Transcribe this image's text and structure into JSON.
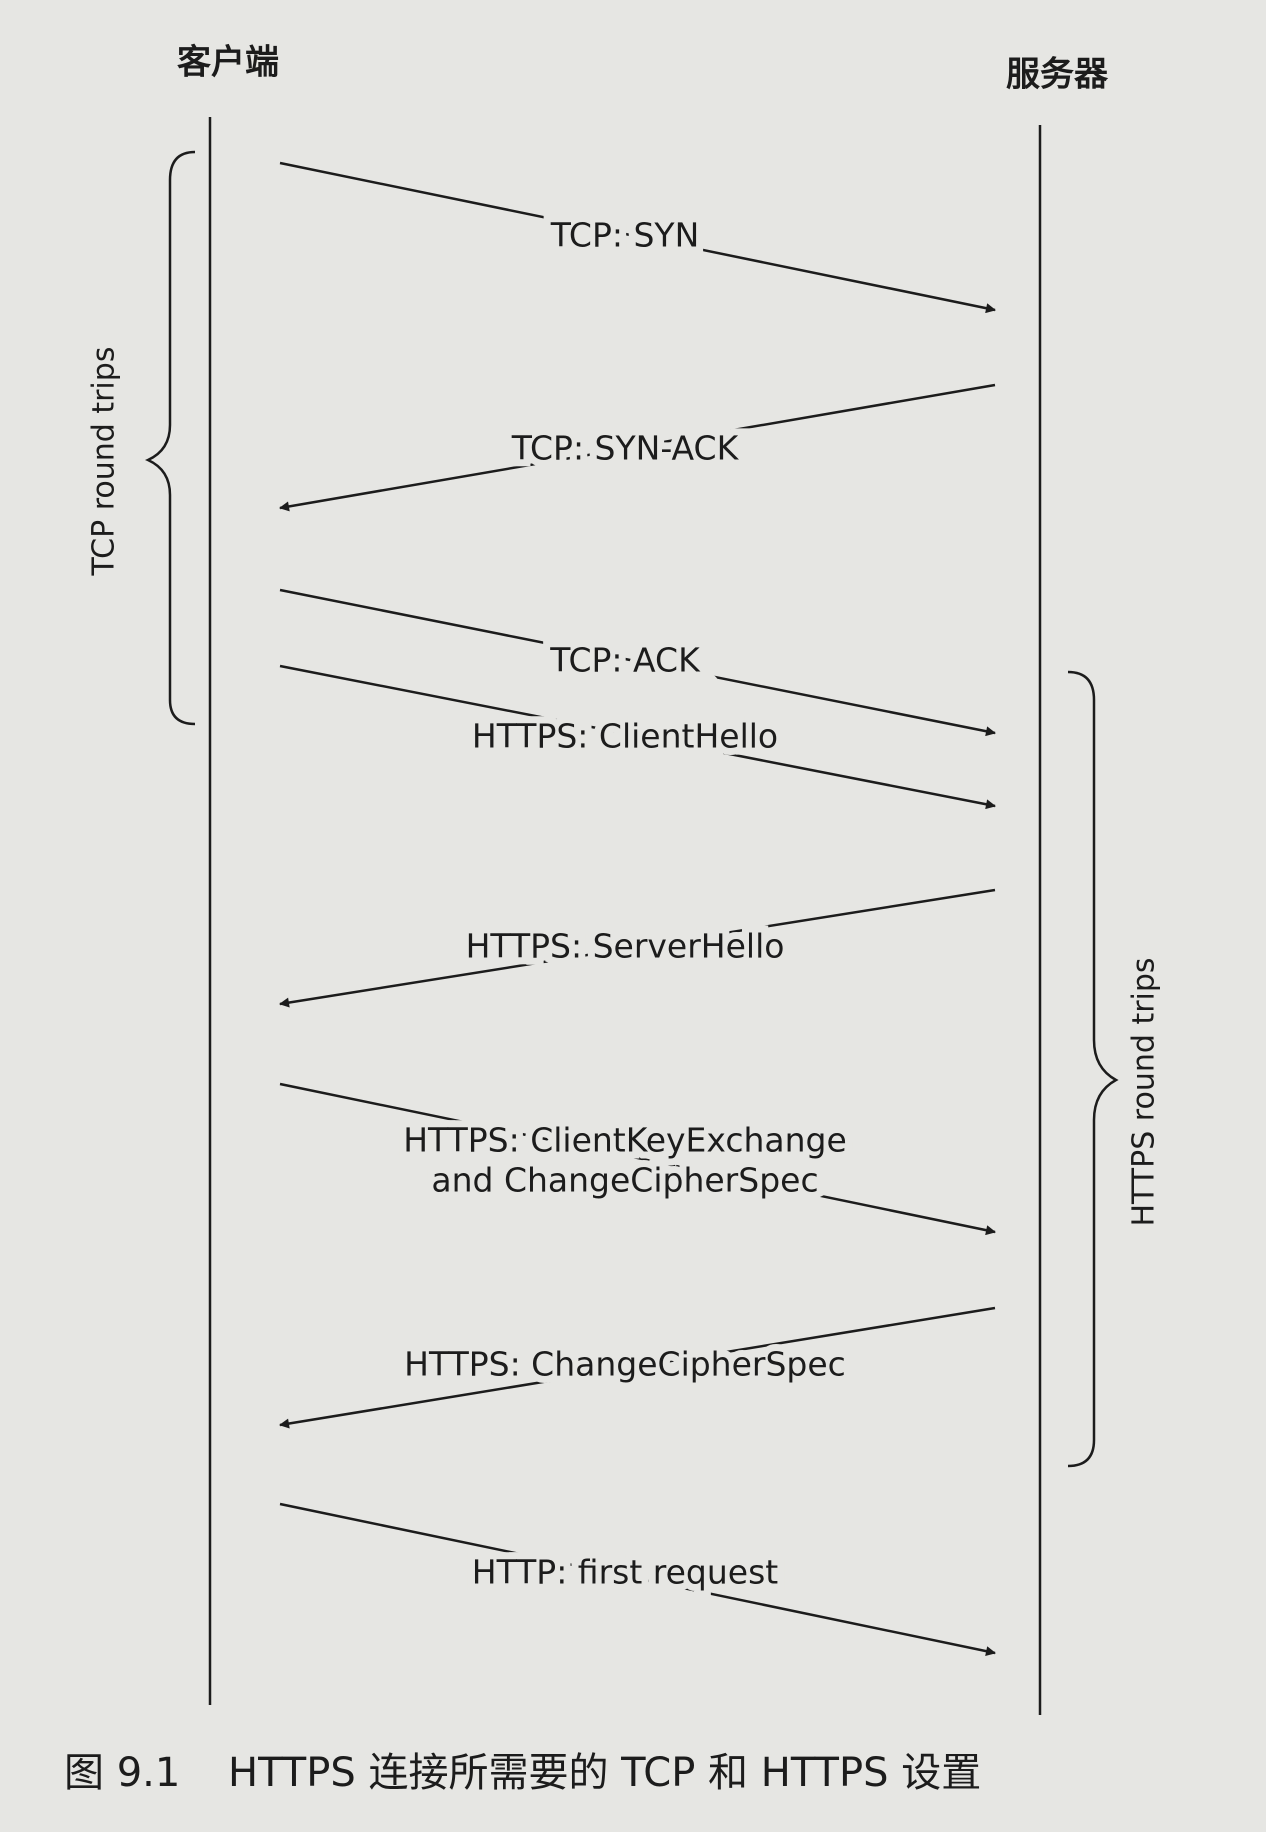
{
  "participants": {
    "client": "客户端",
    "server": "服务器"
  },
  "messages": [
    {
      "lines": [
        "TCP: SYN"
      ],
      "direction": "client-to-server"
    },
    {
      "lines": [
        "TCP: SYN-ACK"
      ],
      "direction": "server-to-client"
    },
    {
      "lines": [
        "TCP: ACK"
      ],
      "direction": "client-to-server"
    },
    {
      "lines": [
        "HTTPS: ClientHello"
      ],
      "direction": "client-to-server"
    },
    {
      "lines": [
        "HTTPS: ServerHello"
      ],
      "direction": "server-to-client"
    },
    {
      "lines": [
        "HTTPS: ClientKeyExchange",
        "and ChangeCipherSpec"
      ],
      "direction": "client-to-server"
    },
    {
      "lines": [
        "HTTPS: ChangeCipherSpec"
      ],
      "direction": "server-to-client"
    },
    {
      "lines": [
        "HTTP: first request"
      ],
      "direction": "client-to-server"
    }
  ],
  "braces": {
    "left": "TCP round trips",
    "right": "HTTPS round trips"
  },
  "caption": {
    "number": "图 9.1",
    "text": "HTTPS 连接所需要的 TCP 和 HTTPS 设置"
  }
}
